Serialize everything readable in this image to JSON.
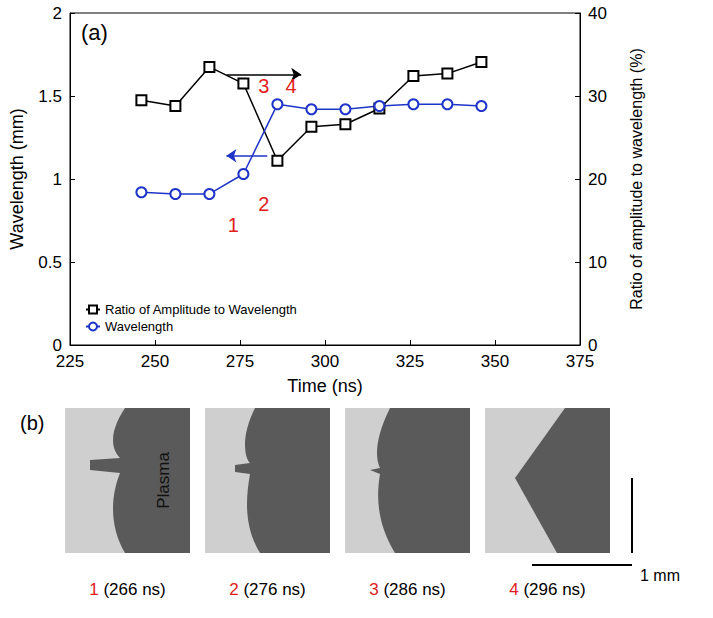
{
  "chart_data": {
    "type": "line",
    "title": "(a)",
    "x_label": "Time (ns)",
    "y_label": "Wavelength (mm)",
    "y2_label": "Ratio of amplitude to wavelength (%)",
    "x": [
      246,
      256,
      266,
      276,
      286,
      296,
      306,
      316,
      326,
      336,
      346
    ],
    "xlim": [
      225,
      375
    ],
    "xticks": [
      225,
      250,
      275,
      300,
      325,
      350,
      375
    ],
    "ylim": [
      0,
      2
    ],
    "yticks": [
      0,
      0.5,
      1,
      1.5,
      2
    ],
    "y2lim": [
      0,
      40
    ],
    "y2ticks": [
      0,
      10,
      20,
      30,
      40
    ],
    "grid": false,
    "legend": "lower left",
    "series": [
      {
        "name": "Ratio of Amplitude to Wavelength",
        "color": "#000000",
        "marker": "square",
        "line_style": "solid",
        "axis": "y2",
        "values": [
          29.5,
          28.8,
          33.5,
          31.5,
          22.2,
          26.3,
          26.6,
          28.5,
          32.4,
          32.7,
          34.1
        ]
      },
      {
        "name": "Wavelength",
        "color": "#1f35c8",
        "marker": "circle",
        "line_style": "solid",
        "axis": "y",
        "values": [
          0.92,
          0.91,
          0.91,
          1.03,
          1.45,
          1.42,
          1.42,
          1.44,
          1.45,
          1.45,
          1.44
        ]
      }
    ],
    "annotations": [
      {
        "text": "1",
        "x": 273,
        "y": 0.72,
        "color": "#e0201b"
      },
      {
        "text": "2",
        "x": 282,
        "y": 0.85,
        "color": "#e0201b"
      },
      {
        "text": "3",
        "x": 282,
        "y": 1.56,
        "color": "#e0201b"
      },
      {
        "text": "4",
        "x": 290,
        "y": 1.56,
        "color": "#e0201b"
      }
    ],
    "arrows": [
      {
        "from": [
          271,
          32.6
        ],
        "to": [
          293,
          32.6
        ],
        "axis": "y2",
        "color": "#000000"
      },
      {
        "from": [
          283,
          1.14
        ],
        "to": [
          271,
          1.14
        ],
        "axis": "y",
        "color": "#1f35c8"
      }
    ]
  },
  "images": {
    "label": "(b)",
    "region_label": "Plasma",
    "number_color": "#e0201b",
    "scale_bar": "1 mm",
    "frames": [
      {
        "number": "1",
        "time": "(266 ns)"
      },
      {
        "number": "2",
        "time": "(276 ns)"
      },
      {
        "number": "3",
        "time": "(286 ns)"
      },
      {
        "number": "4",
        "time": "(296 ns)"
      }
    ]
  }
}
